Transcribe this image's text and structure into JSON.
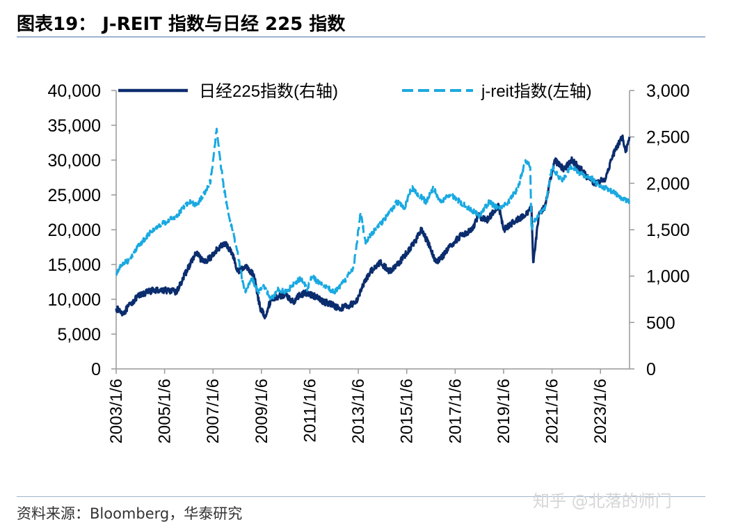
{
  "header": {
    "title": "图表19：  J-REIT 指数与日经 225 指数"
  },
  "footer": {
    "source": "资料来源：Bloomberg，华泰研究",
    "watermark": "知乎 @北落的师门"
  },
  "colors": {
    "nikkei": "#0B2D6E",
    "jreit": "#19A9E1",
    "axis": "#999999",
    "rule": "#9DB3CE"
  },
  "chart_data": {
    "type": "line",
    "title": "J-REIT 指数与日经 225 指数",
    "x_tick_labels": [
      "2003/1/6",
      "2005/1/6",
      "2007/1/6",
      "2009/1/6",
      "2011/1/6",
      "2013/1/6",
      "2015/1/6",
      "2017/1/6",
      "2019/1/6",
      "2021/1/6",
      "2023/1/6"
    ],
    "x_tick_years": [
      2003,
      2005,
      2007,
      2009,
      2011,
      2013,
      2015,
      2017,
      2019,
      2021,
      2023
    ],
    "xlim": [
      2003.0,
      2024.2
    ],
    "left_axis": {
      "ylim": [
        0,
        40000
      ],
      "ticks": [
        0,
        5000,
        10000,
        15000,
        20000,
        25000,
        30000,
        35000,
        40000
      ],
      "tick_labels": [
        "0",
        "5,000",
        "10,000",
        "15,000",
        "20,000",
        "25,000",
        "30,000",
        "35,000",
        "40,000"
      ]
    },
    "right_axis": {
      "ylim": [
        0,
        3000
      ],
      "ticks": [
        0,
        500,
        1000,
        1500,
        2000,
        2500,
        3000
      ],
      "tick_labels": [
        "0",
        "500",
        "1,000",
        "1,500",
        "2,000",
        "2,500",
        "3,000"
      ]
    },
    "legend_position": "top",
    "series": [
      {
        "name": "日经225指数(右轴)",
        "axis": "right",
        "style": "solid",
        "x": [
          2003.0,
          2003.3,
          2003.6,
          2003.9,
          2004.3,
          2004.6,
          2005.0,
          2005.5,
          2005.9,
          2006.3,
          2006.6,
          2006.9,
          2007.2,
          2007.5,
          2007.8,
          2008.0,
          2008.4,
          2008.7,
          2008.95,
          2009.15,
          2009.4,
          2009.7,
          2010.0,
          2010.3,
          2010.6,
          2010.9,
          2011.2,
          2011.6,
          2011.9,
          2012.2,
          2012.6,
          2012.9,
          2013.2,
          2013.5,
          2013.9,
          2014.3,
          2014.7,
          2015.0,
          2015.4,
          2015.6,
          2015.9,
          2016.2,
          2016.5,
          2016.9,
          2017.3,
          2017.7,
          2017.95,
          2018.3,
          2018.6,
          2018.8,
          2019.0,
          2019.5,
          2019.9,
          2020.15,
          2020.22,
          2020.45,
          2020.7,
          2021.1,
          2021.5,
          2021.8,
          2022.2,
          2022.5,
          2022.8,
          2023.2,
          2023.5,
          2023.9,
          2024.05,
          2024.2
        ],
        "values": [
          650,
          600,
          700,
          780,
          830,
          850,
          850,
          830,
          1050,
          1250,
          1150,
          1200,
          1300,
          1350,
          1250,
          1050,
          1100,
          1000,
          650,
          570,
          750,
          780,
          800,
          720,
          800,
          820,
          780,
          720,
          700,
          650,
          680,
          720,
          900,
          1050,
          1150,
          1050,
          1150,
          1250,
          1400,
          1500,
          1350,
          1150,
          1220,
          1350,
          1450,
          1500,
          1650,
          1600,
          1700,
          1750,
          1500,
          1600,
          1650,
          1750,
          1150,
          1650,
          1750,
          2250,
          2150,
          2250,
          2150,
          2050,
          2000,
          2050,
          2300,
          2500,
          2350,
          2500
        ]
      },
      {
        "name": "j-reit指数(左轴)",
        "axis": "left",
        "style": "dashed",
        "x": [
          2003.0,
          2003.2,
          2003.5,
          2004.0,
          2004.5,
          2005.0,
          2005.5,
          2006.0,
          2006.3,
          2006.6,
          2006.9,
          2007.15,
          2007.3,
          2007.45,
          2007.6,
          2007.8,
          2008.0,
          2008.3,
          2008.6,
          2008.9,
          2009.1,
          2009.4,
          2009.7,
          2010.0,
          2010.3,
          2010.6,
          2010.9,
          2011.1,
          2011.3,
          2011.6,
          2012.0,
          2012.4,
          2012.8,
          2013.1,
          2013.3,
          2013.45,
          2013.7,
          2014.2,
          2014.6,
          2014.9,
          2015.2,
          2015.5,
          2015.8,
          2016.1,
          2016.4,
          2016.8,
          2017.2,
          2017.6,
          2018.0,
          2018.4,
          2018.8,
          2019.2,
          2019.6,
          2019.9,
          2020.1,
          2020.15,
          2020.22,
          2020.4,
          2020.7,
          2021.0,
          2021.4,
          2021.8,
          2022.2,
          2022.6,
          2022.9,
          2023.2,
          2023.5,
          2023.9,
          2024.2
        ],
        "values": [
          13500,
          15000,
          15500,
          18000,
          20000,
          21000,
          22000,
          24000,
          23500,
          25000,
          27000,
          34500,
          30000,
          26000,
          23000,
          20000,
          17000,
          11000,
          13000,
          11000,
          12000,
          10000,
          11500,
          11000,
          12000,
          13000,
          11500,
          13500,
          12500,
          12000,
          11000,
          12500,
          14500,
          22500,
          18000,
          19000,
          20000,
          22000,
          24000,
          23000,
          26000,
          25000,
          24000,
          26000,
          24000,
          25000,
          24000,
          23000,
          22000,
          24000,
          23000,
          24000,
          26000,
          30000,
          29000,
          20000,
          21000,
          22000,
          23000,
          29000,
          27000,
          29000,
          28000,
          27500,
          26500,
          26000,
          25500,
          24500,
          24000
        ]
      }
    ]
  }
}
